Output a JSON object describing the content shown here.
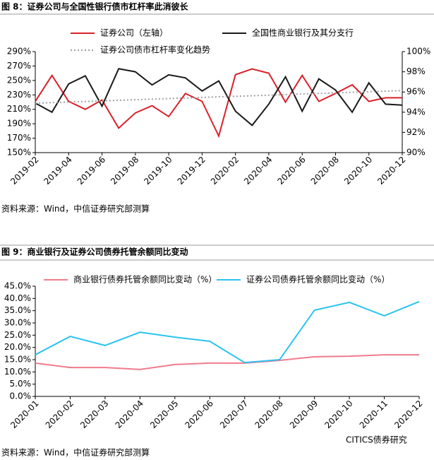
{
  "chart_data": [
    {
      "type": "line",
      "title": "图 8：证券公司与全国性银行债市杠杆率此消彼长",
      "source": "资料来源：Wind，中信证券研究部测算",
      "categories": [
        "2019-02",
        null,
        "2019-04",
        null,
        "2019-06",
        null,
        "2019-08",
        null,
        "2019-10",
        null,
        "2019-12",
        null,
        "2020-02",
        null,
        "2020-04",
        null,
        "2020-06",
        null,
        "2020-08",
        null,
        "2020-10",
        null,
        "2020-12"
      ],
      "series": [
        {
          "name": "证券公司（左轴）",
          "color": "#d9222a",
          "values": [
            221,
            257,
            221,
            210,
            223,
            184,
            205,
            215,
            200,
            232,
            221,
            173,
            258,
            266,
            260,
            220,
            257,
            221,
            232,
            244,
            221,
            226,
            226
          ]
        },
        {
          "name": "全国性商业银行及其分支行",
          "color": "#1a1a1a",
          "axis": "y2",
          "values": [
            94.9,
            94.0,
            96.8,
            97.6,
            94.6,
            98.3,
            98.0,
            96.7,
            97.7,
            97.4,
            96.1,
            97.1,
            94.1,
            92.7,
            94.8,
            97.5,
            94.1,
            97.3,
            96.2,
            94.0,
            96.9,
            94.8,
            94.7
          ]
        },
        {
          "name": "证券公司债市杠杆率变化趋势",
          "color": "#a0a0a0",
          "style": "dotted",
          "values": [
            218.5,
            219.3,
            220.1,
            220.9,
            221.7,
            222.5,
            223.3,
            224.1,
            224.9,
            225.7,
            226.5,
            227.3,
            228.0,
            228.8,
            229.6,
            230.4,
            231.2,
            232.0,
            232.8,
            233.6,
            234.4,
            235.2,
            236.0
          ]
        }
      ],
      "ylim": [
        150,
        290
      ],
      "yticks": [
        {
          "value": 150,
          "label": "150%"
        },
        {
          "value": 170,
          "label": "170%"
        },
        {
          "value": 190,
          "label": "190%"
        },
        {
          "value": 210,
          "label": "210%"
        },
        {
          "value": 230,
          "label": "230%"
        },
        {
          "value": 250,
          "label": "250%"
        },
        {
          "value": 270,
          "label": "270%"
        },
        {
          "value": 290,
          "label": "290%"
        }
      ],
      "y2lim": [
        90,
        100
      ],
      "y2ticks": [
        {
          "value": 90,
          "label": "90%"
        },
        {
          "value": 92,
          "label": "92%"
        },
        {
          "value": 94,
          "label": "94%"
        },
        {
          "value": 96,
          "label": "96%"
        },
        {
          "value": 98,
          "label": "98%"
        },
        {
          "value": 100,
          "label": "100%"
        }
      ],
      "grid": false
    },
    {
      "type": "line",
      "title": "图 9：商业银行及证券公司债券托管余额同比变动",
      "source": "资料来源：Wind，中信证券研究部测算",
      "watermark": "CITICS债券研究",
      "categories": [
        "2020-01",
        "2020-02",
        "2020-03",
        "2020-04",
        "2020-05",
        "2020-06",
        "2020-07",
        "2020-08",
        "2020-09",
        "2020-10",
        "2020-11",
        "2020-12"
      ],
      "series": [
        {
          "name": "商业银行债券托管余额同比变动（%）",
          "color": "#f07c8c",
          "values": [
            13.6,
            11.8,
            11.8,
            11.0,
            13.0,
            13.6,
            13.6,
            14.7,
            16.2,
            16.4,
            17.0,
            17.0
          ]
        },
        {
          "name": "证券公司债券托管余额同比变动（%）",
          "color": "#2cc3f0",
          "values": [
            17.0,
            24.5,
            20.8,
            26.2,
            24.2,
            22.5,
            13.8,
            15.0,
            35.2,
            38.4,
            32.9,
            38.7
          ]
        }
      ],
      "ylim": [
        0,
        45
      ],
      "yticks": [
        {
          "value": 0,
          "label": "0.0%"
        },
        {
          "value": 5,
          "label": "5.0%"
        },
        {
          "value": 10,
          "label": "10.0%"
        },
        {
          "value": 15,
          "label": "15.0%"
        },
        {
          "value": 20,
          "label": "20.0%"
        },
        {
          "value": 25,
          "label": "25.0%"
        },
        {
          "value": 30,
          "label": "30.0%"
        },
        {
          "value": 35,
          "label": "35.0%"
        },
        {
          "value": 40,
          "label": "40.0%"
        },
        {
          "value": 45,
          "label": "45.0%"
        }
      ],
      "grid": false
    }
  ]
}
